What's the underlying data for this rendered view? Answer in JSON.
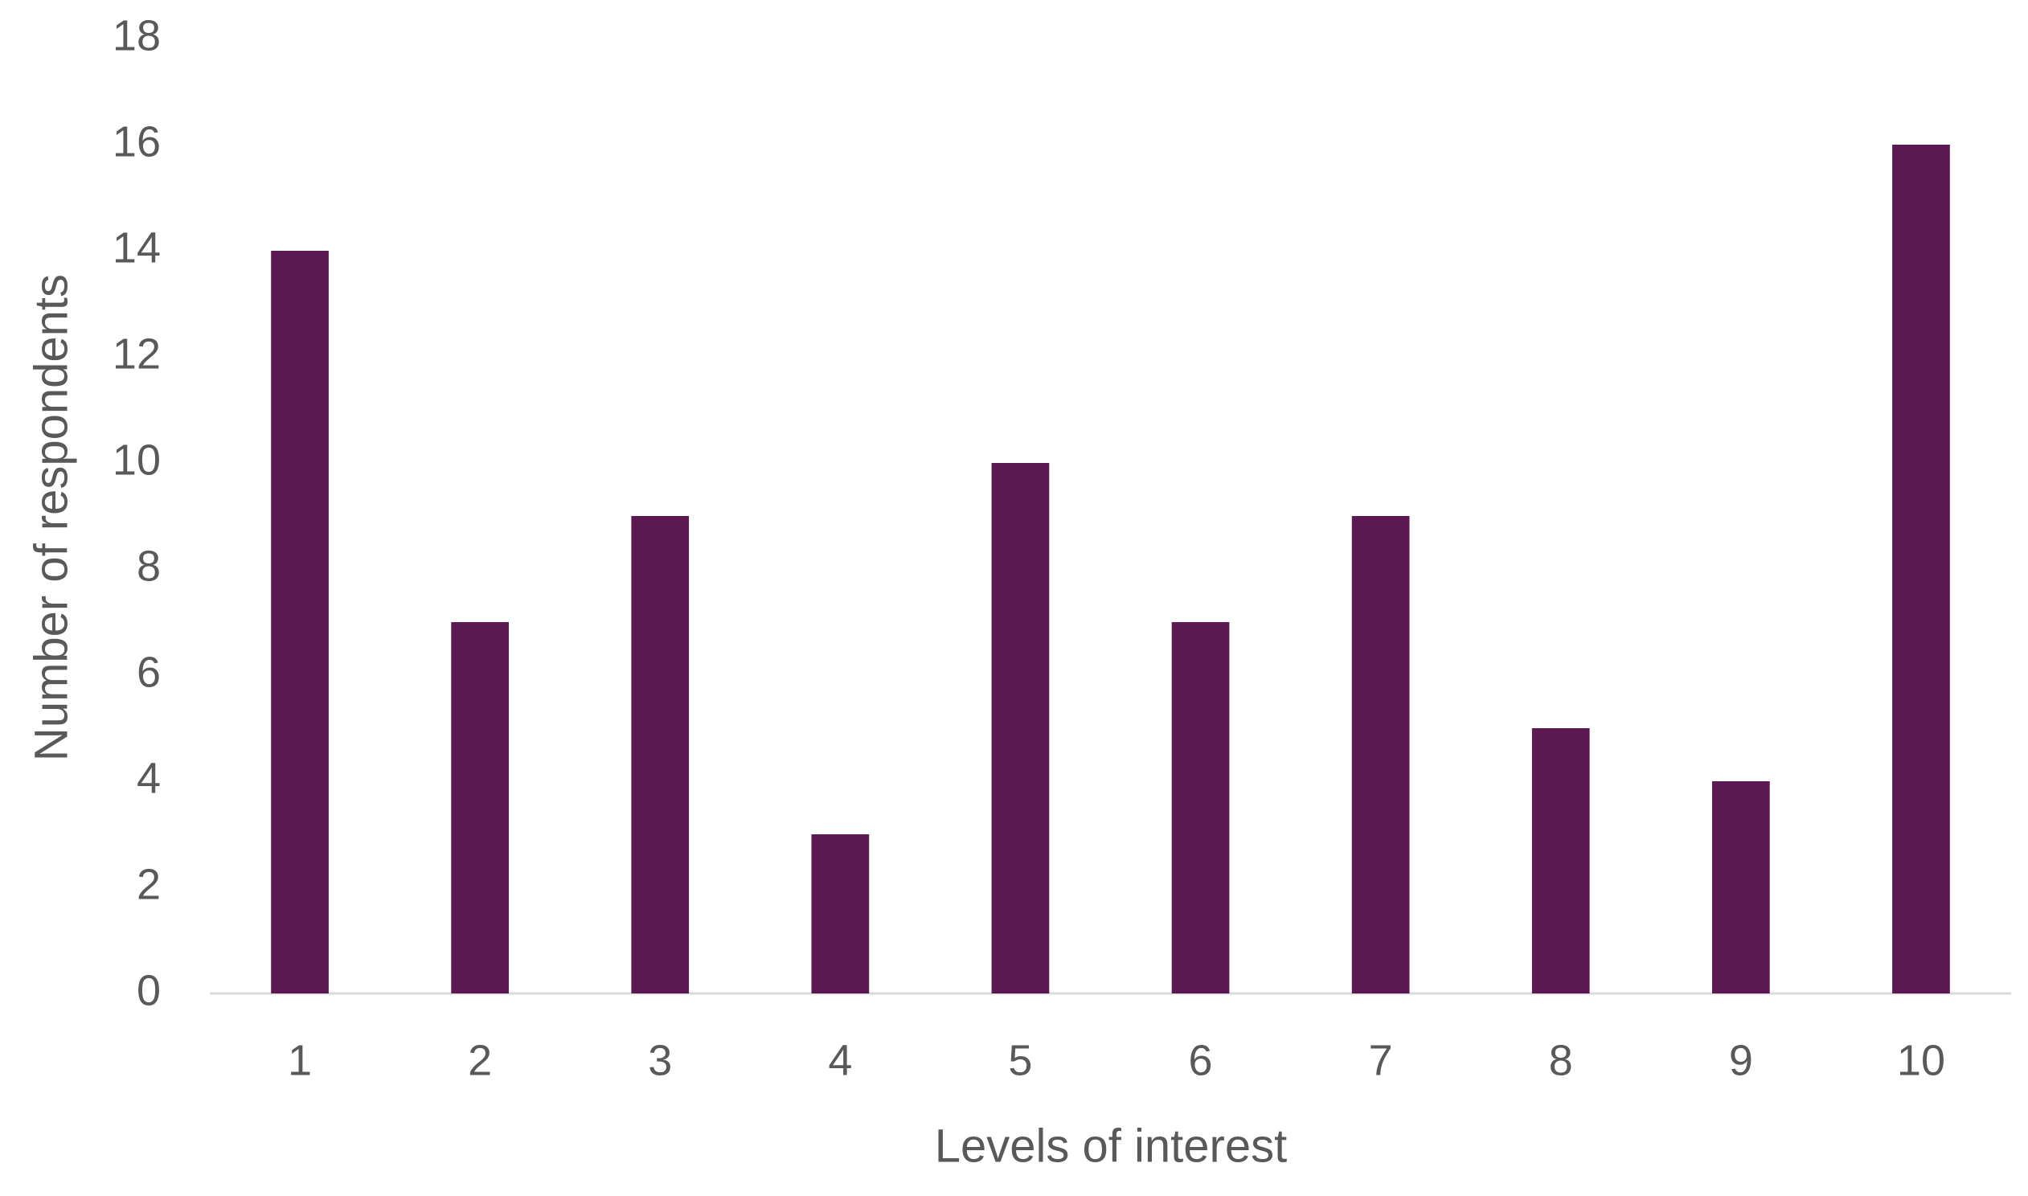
{
  "chart_data": {
    "type": "bar",
    "x_label": "Levels of interest",
    "y_label": "Number of respondents",
    "categories": [
      "1",
      "2",
      "3",
      "4",
      "5",
      "6",
      "7",
      "8",
      "9",
      "10"
    ],
    "values": [
      14,
      7,
      9,
      3,
      10,
      7,
      9,
      5,
      4,
      16
    ],
    "color": "#5c1850",
    "ylim": [
      0,
      18
    ],
    "yticks": [
      0,
      2,
      4,
      6,
      8,
      10,
      12,
      14,
      16,
      18
    ],
    "grid": false
  }
}
